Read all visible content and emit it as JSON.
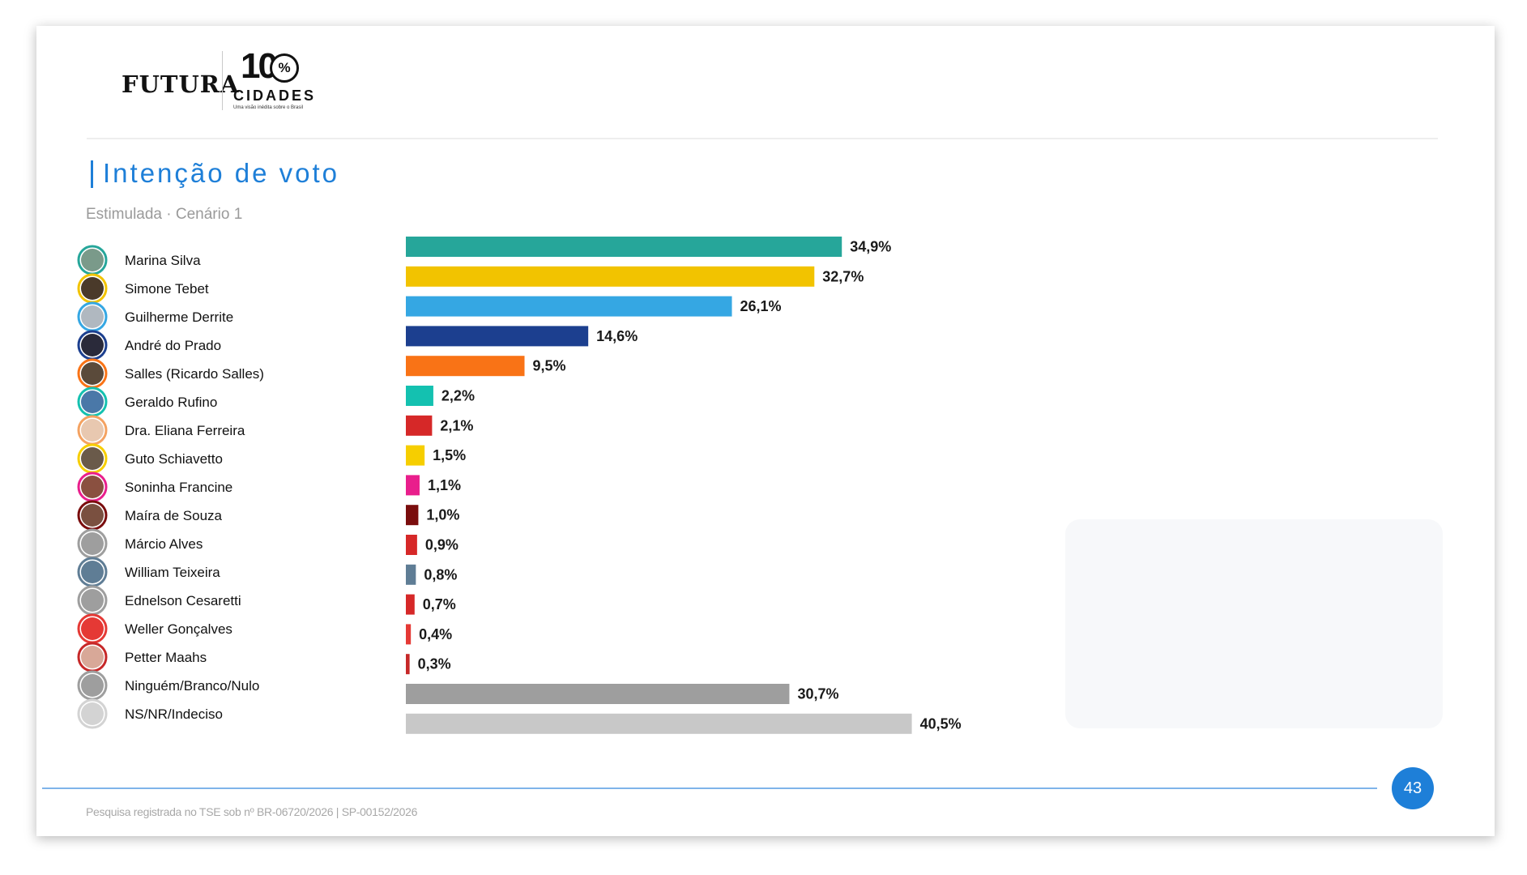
{
  "header": {
    "brand": "FUTURA",
    "partner_number": "10",
    "partner_percent": "%",
    "partner_name": "CIDADES",
    "partner_tagline": "Uma visão inédita sobre o Brasil"
  },
  "chart_data": {
    "type": "bar",
    "orientation": "horizontal",
    "title": "Intenção de voto",
    "subtitle": "Estimulada · Cenário 1",
    "categories": [
      "Marina Silva",
      "Simone Tebet",
      "Guilherme Derrite",
      "André do Prado",
      "Salles (Ricardo Salles)",
      "Geraldo Rufino",
      "Dra. Eliana Ferreira",
      "Guto Schiavetto",
      "Soninha Francine",
      "Maíra de Souza",
      "Márcio Alves",
      "William Teixeira",
      "Ednelson Cesaretti",
      "Weller Gonçalves",
      "Petter Maahs",
      "Ninguém/Branco/Nulo",
      "NS/NR/Indeciso"
    ],
    "values": [
      34.9,
      32.7,
      26.1,
      14.6,
      9.5,
      2.2,
      2.1,
      1.5,
      1.1,
      1.0,
      0.9,
      0.8,
      0.7,
      0.4,
      0.3,
      30.7,
      40.5
    ],
    "value_labels": [
      "34,9%",
      "32,7%",
      "26,1%",
      "14,6%",
      "9,5%",
      "2,2%",
      "2,1%",
      "1,5%",
      "1,1%",
      "1,0%",
      "0,9%",
      "0,8%",
      "0,7%",
      "0,4%",
      "0,3%",
      "30,7%",
      "40,5%"
    ],
    "colors": [
      "#26a69a",
      "#f2c300",
      "#35a7e3",
      "#1c3f8f",
      "#f97316",
      "#14c1b0",
      "#d62828",
      "#f6ce00",
      "#e91e8c",
      "#7a0d0d",
      "#d62828",
      "#5f7d95",
      "#d62828",
      "#e53935",
      "#c62828",
      "#9e9e9e",
      "#c8c8c8"
    ],
    "avatar_colors": [
      "#7a9a8a",
      "#4a3a2a",
      "#b0b8c0",
      "#2a2a3a",
      "#5a4a3a",
      "#4a78a8",
      "#e8c8b0",
      "#6a5a4a",
      "#8a5040",
      "#7a5040",
      "#9e9e9e",
      "#5f7d95",
      "#9e9e9e",
      "#e53935",
      "#d8a898",
      "#9e9e9e",
      "#d3d3d3"
    ],
    "avatar_ring_colors": [
      "#26a69a",
      "#f2c300",
      "#35a7e3",
      "#1c3f8f",
      "#f97316",
      "#14c1b0",
      "#f4a261",
      "#f6ce00",
      "#e91e8c",
      "#7a0d0d",
      "#9e9e9e",
      "#5f7d95",
      "#9e9e9e",
      "#e53935",
      "#c62828",
      "#9e9e9e",
      "#d3d3d3"
    ],
    "xlim": [
      0,
      41.5
    ],
    "grid": false,
    "legend": "none"
  },
  "page_number": "43",
  "footer": "Pesquisa registrada no TSE sob nº BR-06720/2026 | SP-00152/2026"
}
